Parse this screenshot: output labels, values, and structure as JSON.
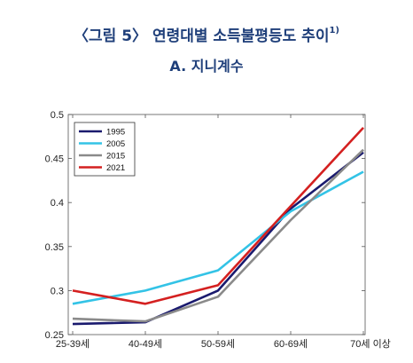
{
  "title": "〈그림 5〉 연령대별 소득불평등도 추이",
  "title_note": "1)",
  "subtitle": "A. 지니계수",
  "chart_data": {
    "type": "line",
    "categories": [
      "25-39세",
      "40-49세",
      "50-59세",
      "60-69세",
      "70세 이상"
    ],
    "ylim": [
      0.25,
      0.5
    ],
    "yticks": [
      0.25,
      0.3,
      0.35,
      0.4,
      0.45,
      0.5
    ],
    "ytick_labels": [
      "0.25",
      "0.3",
      "0.35",
      "0.4",
      "0.45",
      "0.5"
    ],
    "grid": false,
    "legend_position": "top-left",
    "series": [
      {
        "name": "1995",
        "color": "#1a1a6e",
        "values": [
          0.262,
          0.264,
          0.3,
          0.393,
          0.457
        ]
      },
      {
        "name": "2005",
        "color": "#33c3e6",
        "values": [
          0.285,
          0.3,
          0.323,
          0.39,
          0.435
        ]
      },
      {
        "name": "2015",
        "color": "#8a8a8a",
        "values": [
          0.268,
          0.265,
          0.293,
          0.38,
          0.46
        ]
      },
      {
        "name": "2021",
        "color": "#d42020",
        "values": [
          0.3,
          0.285,
          0.306,
          0.396,
          0.485
        ]
      }
    ]
  }
}
